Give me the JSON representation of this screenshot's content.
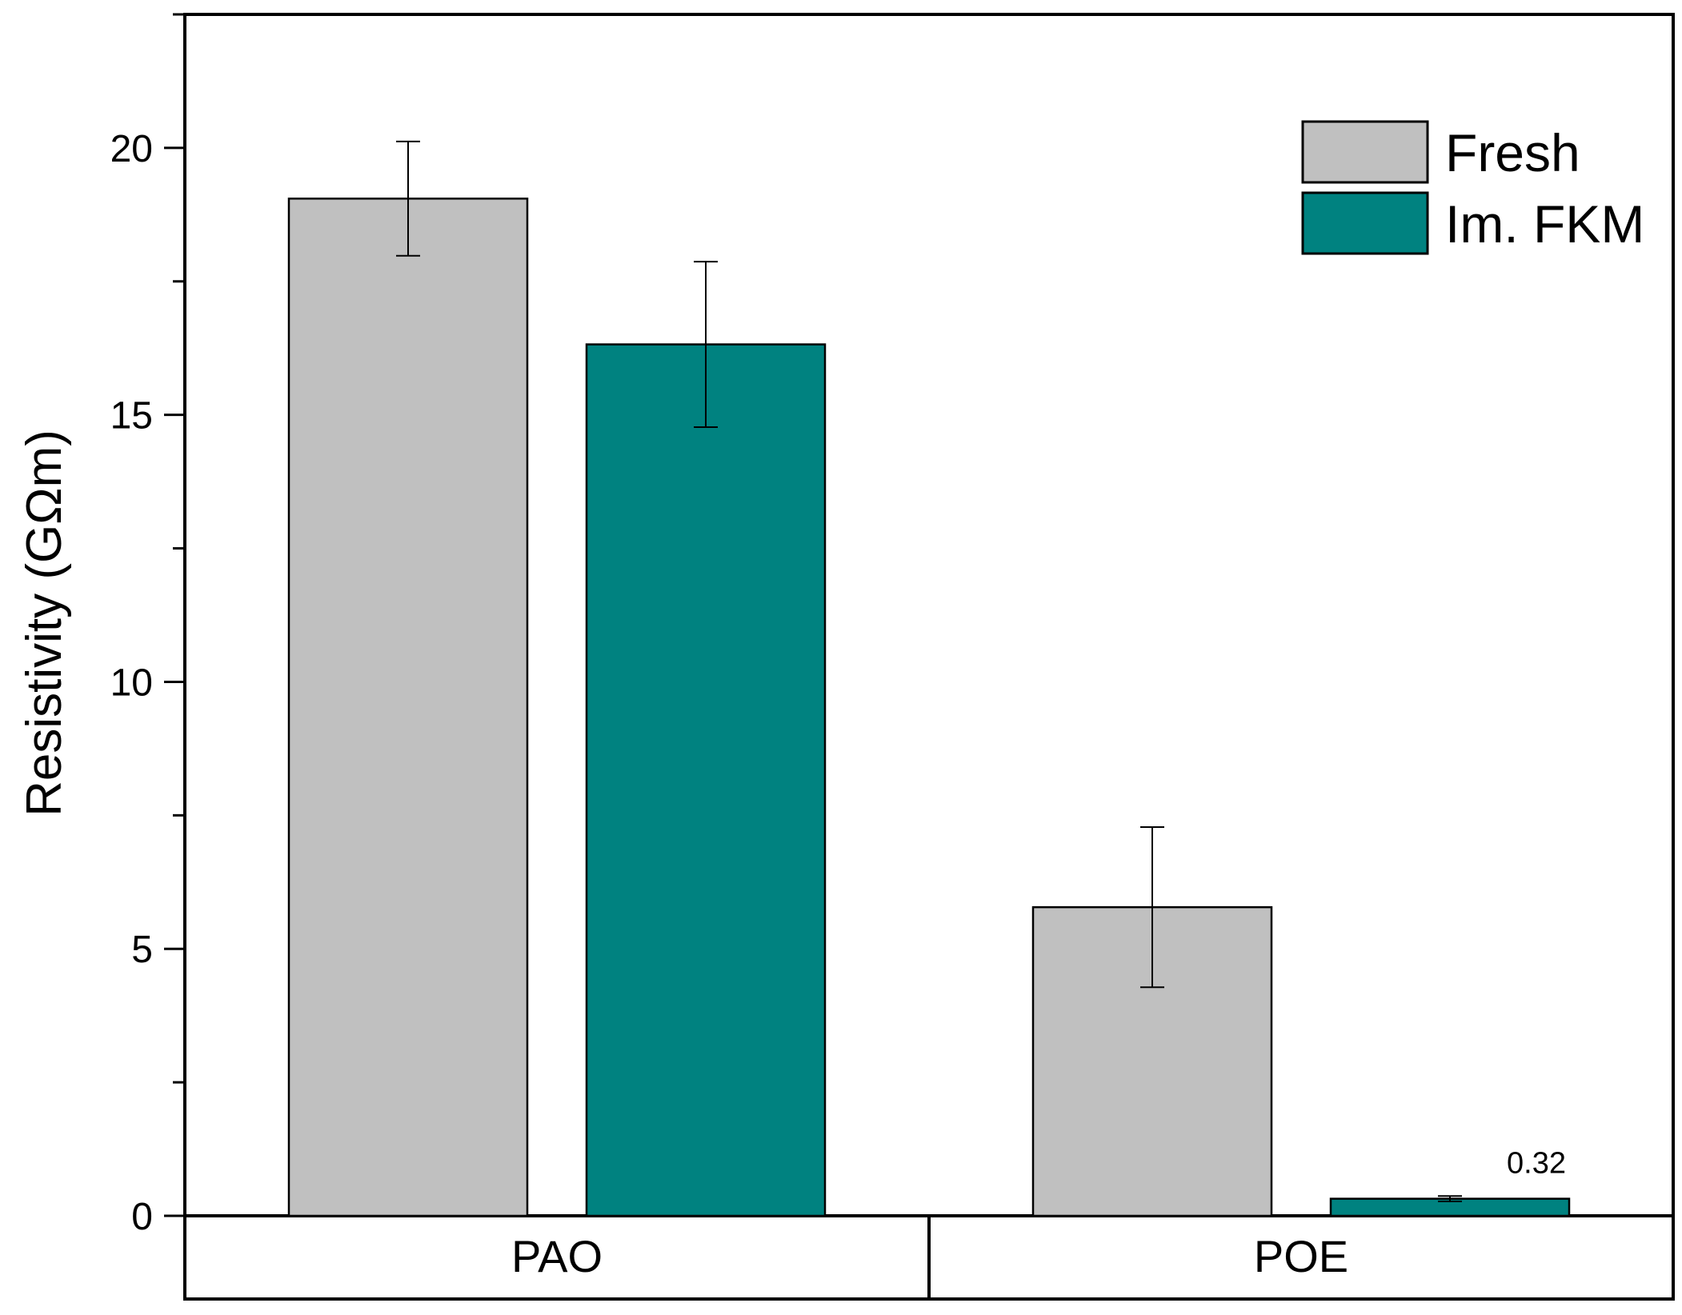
{
  "chart_data": {
    "type": "bar",
    "categories": [
      "PAO",
      "POE"
    ],
    "series": [
      {
        "name": "Fresh",
        "values": [
          19.05,
          5.78
        ],
        "errors": [
          1.07,
          1.5
        ],
        "color": "#c0c0c0"
      },
      {
        "name": "Im. FKM",
        "values": [
          16.32,
          0.32
        ],
        "errors": [
          1.55,
          0.05
        ],
        "color": "#008280"
      }
    ],
    "ylabel": "Resistivity (GΩm)",
    "ylim": [
      0,
      22.5
    ],
    "yticks": [
      0,
      5,
      10,
      15,
      20
    ],
    "ytick_labels": [
      "0",
      "5",
      "10",
      "15",
      "20"
    ],
    "annotations": [
      {
        "series": 1,
        "category": 1,
        "text": "0.32"
      }
    ],
    "legend_position": "top-right",
    "grid": false
  }
}
